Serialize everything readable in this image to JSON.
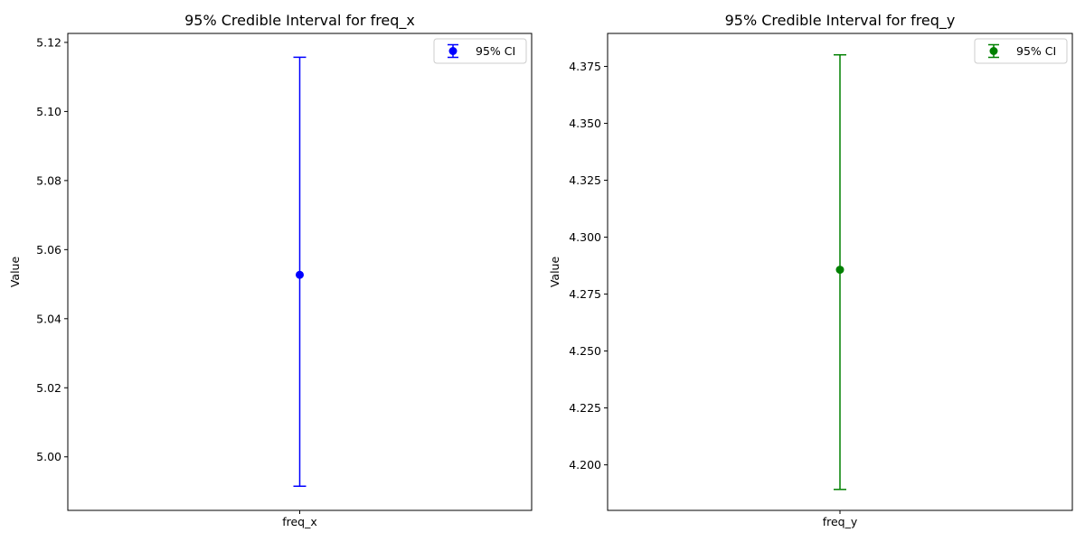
{
  "chart_data": [
    {
      "type": "errorbar",
      "title": "95% Credible Interval for freq_x",
      "xlabel": "",
      "ylabel": "Value",
      "categories": [
        "freq_x"
      ],
      "ylim": [
        4.9845,
        5.1226
      ],
      "yticks": [
        5.0,
        5.02,
        5.04,
        5.06,
        5.08,
        5.1,
        5.12
      ],
      "ytick_labels": [
        "5.00",
        "5.02",
        "5.04",
        "5.06",
        "5.08",
        "5.10",
        "5.12"
      ],
      "series": [
        {
          "name": "95% CI",
          "color": "#0000ff",
          "point": 5.0527,
          "lower": 4.9915,
          "upper": 5.1157
        }
      ],
      "legend": "top-right",
      "grid": false
    },
    {
      "type": "errorbar",
      "title": "95% Credible Interval for freq_y",
      "xlabel": "",
      "ylabel": "Value",
      "categories": [
        "freq_y"
      ],
      "ylim": [
        4.18,
        4.3895
      ],
      "yticks": [
        4.2,
        4.225,
        4.25,
        4.275,
        4.3,
        4.325,
        4.35,
        4.375
      ],
      "ytick_labels": [
        "4.200",
        "4.225",
        "4.250",
        "4.275",
        "4.300",
        "4.325",
        "4.350",
        "4.375"
      ],
      "series": [
        {
          "name": "95% CI",
          "color": "#008000",
          "point": 4.2857,
          "lower": 4.1892,
          "upper": 4.3801
        }
      ],
      "legend": "top-right",
      "grid": false
    }
  ]
}
